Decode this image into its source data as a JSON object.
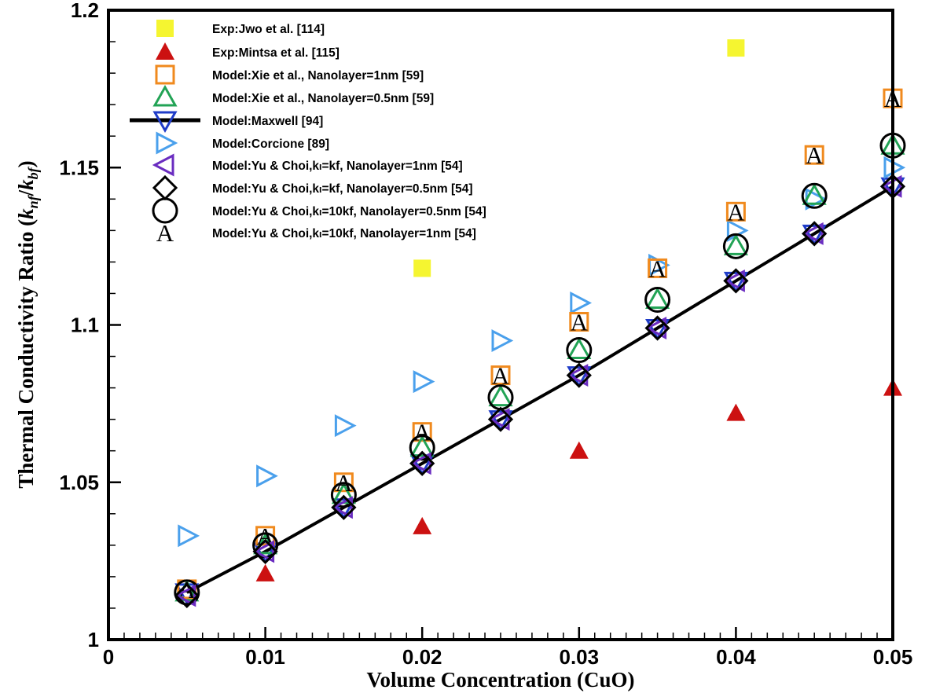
{
  "chart_data": {
    "type": "scatter",
    "x_label": "Volume Concentration (CuO)",
    "y_label_text": "Thermal Conductivity Ratio (",
    "y_label_math": "k",
    "y_label_sub1": "nf",
    "y_label_slash": "/",
    "y_label_math2": "k",
    "y_label_sub2": "bf",
    "y_label_close": ")",
    "xlim": [
      0,
      0.05
    ],
    "ylim": [
      1,
      1.2
    ],
    "x_ticks": [
      {
        "value": 0,
        "label": "0"
      },
      {
        "value": 0.01,
        "label": "0.01"
      },
      {
        "value": 0.02,
        "label": "0.02"
      },
      {
        "value": 0.03,
        "label": "0.03"
      },
      {
        "value": 0.04,
        "label": "0.04"
      },
      {
        "value": 0.05,
        "label": "0.05"
      }
    ],
    "y_ticks": [
      {
        "value": 1,
        "label": "1"
      },
      {
        "value": 1.05,
        "label": "1.05"
      },
      {
        "value": 1.1,
        "label": "1.1"
      },
      {
        "value": 1.15,
        "label": "1.15"
      },
      {
        "value": 1.2,
        "label": "1.2"
      }
    ],
    "legend_position": "top-left",
    "series": [
      {
        "name": "Exp:Jwo et al. [114]",
        "marker": "filled-square",
        "color": "#f5f530",
        "x": [
          0.02,
          0.04
        ],
        "y": [
          1.118,
          1.188
        ]
      },
      {
        "name": "Exp:Mintsa et al. [115]",
        "marker": "filled-triangle-up",
        "color": "#cc1111",
        "x": [
          0.01,
          0.02,
          0.03,
          0.04,
          0.05
        ],
        "y": [
          1.021,
          1.036,
          1.06,
          1.072,
          1.08
        ]
      },
      {
        "name": "Model:Xie et al., Nanolayer=1nm [59]",
        "marker": "open-square",
        "color": "#f08a1e",
        "x": [
          0.005,
          0.01,
          0.015,
          0.02,
          0.025,
          0.03,
          0.035,
          0.04,
          0.045,
          0.05
        ],
        "y": [
          1.016,
          1.033,
          1.05,
          1.066,
          1.084,
          1.101,
          1.118,
          1.136,
          1.154,
          1.172
        ]
      },
      {
        "name": "Model:Xie et al., Nanolayer=0.5nm [59]",
        "marker": "open-triangle-up",
        "color": "#22a355",
        "x": [
          0.005,
          0.01,
          0.015,
          0.02,
          0.025,
          0.03,
          0.035,
          0.04,
          0.045,
          0.05
        ],
        "y": [
          1.015,
          1.03,
          1.046,
          1.061,
          1.077,
          1.092,
          1.108,
          1.125,
          1.141,
          1.157
        ]
      },
      {
        "name": "Model:Maxwell [94]",
        "marker": "line-open-triangle-down",
        "color": "#000000",
        "marker_color": "#1f3cc8",
        "x": [
          0.005,
          0.01,
          0.015,
          0.02,
          0.025,
          0.03,
          0.035,
          0.04,
          0.045,
          0.05
        ],
        "y": [
          1.015,
          1.028,
          1.042,
          1.056,
          1.07,
          1.084,
          1.099,
          1.114,
          1.129,
          1.144
        ]
      },
      {
        "name": "Model:Corcione [89]",
        "marker": "open-triangle-right",
        "color": "#4aa0ec",
        "x": [
          0.005,
          0.01,
          0.015,
          0.02,
          0.025,
          0.03,
          0.035,
          0.04,
          0.045,
          0.05
        ],
        "y": [
          1.033,
          1.052,
          1.068,
          1.082,
          1.095,
          1.107,
          1.119,
          1.13,
          1.14,
          1.15
        ]
      },
      {
        "name": "Model:Yu & Choi,kₗ=kf, Nanolayer=1nm [54]",
        "marker": "open-triangle-left",
        "color": "#6a2cc0",
        "x": [
          0.005,
          0.01,
          0.015,
          0.02,
          0.025,
          0.03,
          0.035,
          0.04,
          0.045,
          0.05
        ],
        "y": [
          1.014,
          1.028,
          1.042,
          1.056,
          1.07,
          1.084,
          1.099,
          1.114,
          1.129,
          1.144
        ]
      },
      {
        "name": "Model:Yu & Choi,kₗ=kf, Nanolayer=0.5nm [54]",
        "marker": "open-diamond",
        "color": "#000000",
        "x": [
          0.005,
          0.01,
          0.015,
          0.02,
          0.025,
          0.03,
          0.035,
          0.04,
          0.045,
          0.05
        ],
        "y": [
          1.014,
          1.028,
          1.042,
          1.056,
          1.07,
          1.084,
          1.099,
          1.114,
          1.129,
          1.144
        ]
      },
      {
        "name": "Model:Yu & Choi,kₗ=10kf, Nanolayer=0.5nm [54]",
        "marker": "open-circle",
        "color": "#000000",
        "x": [
          0.005,
          0.01,
          0.015,
          0.02,
          0.025,
          0.03,
          0.035,
          0.04,
          0.045,
          0.05
        ],
        "y": [
          1.015,
          1.03,
          1.046,
          1.061,
          1.077,
          1.092,
          1.108,
          1.125,
          1.141,
          1.157
        ]
      },
      {
        "name": "Model:Yu & Choi,kₗ=10kf, Nanolayer=1nm [54]",
        "marker": "letter-A",
        "color": "#000000",
        "x": [
          0.005,
          0.01,
          0.015,
          0.02,
          0.025,
          0.03,
          0.035,
          0.04,
          0.045,
          0.05
        ],
        "y": [
          1.016,
          1.033,
          1.05,
          1.066,
          1.084,
          1.101,
          1.118,
          1.136,
          1.154,
          1.172
        ]
      }
    ]
  }
}
